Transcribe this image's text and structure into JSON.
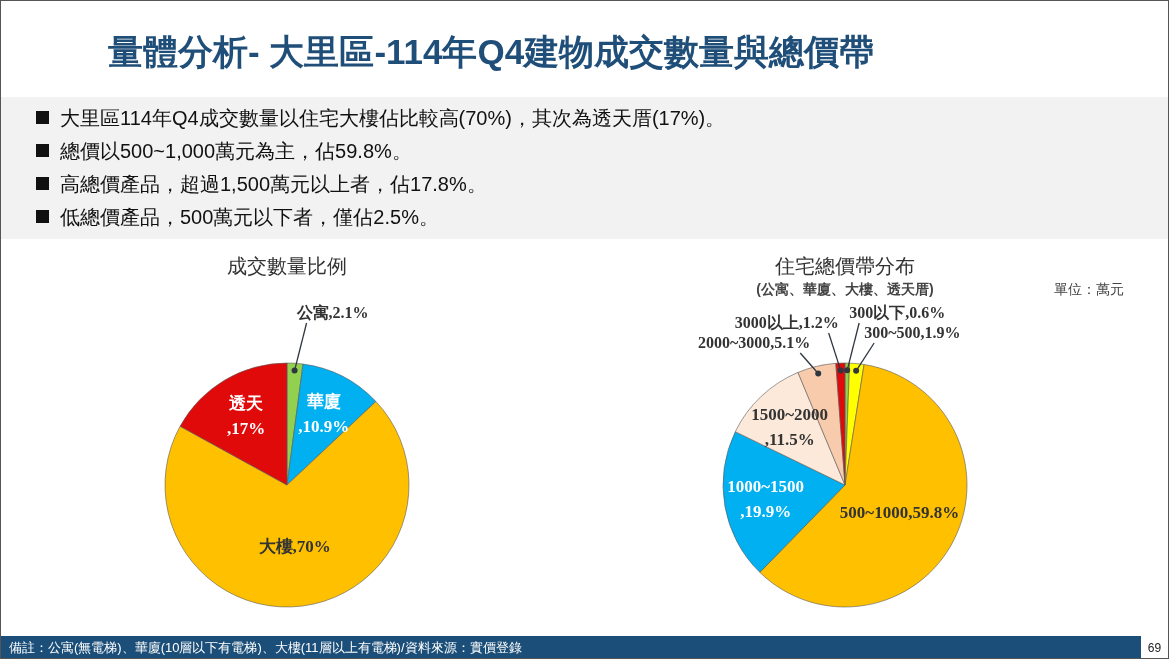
{
  "chart_data": [
    {
      "type": "other",
      "title": "量體分析- 大里區-114年Q4建物成交數量與總價帶",
      "annotations": [
        "大里區114年Q4成交數量以住宅大樓佔比較高(70%)，其次為透天厝(17%)。",
        "總價以500~1,000萬元為主，佔59.8%。",
        "高總價產品，超過1,500萬元以上者，佔17.8%。",
        "低總價產品，500萬元以下者，僅佔2.5%。"
      ]
    },
    {
      "type": "pie",
      "title": "成交數量比例",
      "categories": [
        "公寓",
        "華廈",
        "大樓",
        "透天"
      ],
      "values": [
        2.1,
        10.9,
        70,
        17
      ],
      "colors": [
        "#92d050",
        "#00b0f0",
        "#ffc000",
        "#e00a0a"
      ],
      "value_labels": [
        ",2.1%",
        ",10.9%",
        ",70%",
        ",17%"
      ]
    },
    {
      "type": "pie",
      "title": "住宅總價帶分布",
      "subtitle": "(公寓、華廈、大樓、透天厝)",
      "annotations": [
        "單位：萬元"
      ],
      "categories": [
        "300以下",
        "300~500",
        "500~1000",
        "1000~1500",
        "1500~2000",
        "2000~3000",
        "3000以上"
      ],
      "values": [
        0.6,
        1.9,
        59.8,
        19.9,
        11.5,
        5.1,
        1.2
      ],
      "colors": [
        "#92d050",
        "#ffff00",
        "#ffc000",
        "#00b0f0",
        "#fde9d9",
        "#f8cbad",
        "#e00a0a"
      ],
      "value_labels": [
        ",0.6%",
        ",1.9%",
        ",59.8%",
        ",19.9%",
        ",11.5%",
        ",5.1%",
        ",1.2%"
      ]
    },
    {
      "type": "other",
      "annotations": [
        "備註：公寓(無電梯)、華廈(10層以下有電梯)、大樓(11層以上有電梯)/資料來源：實價登錄",
        "69"
      ]
    }
  ]
}
